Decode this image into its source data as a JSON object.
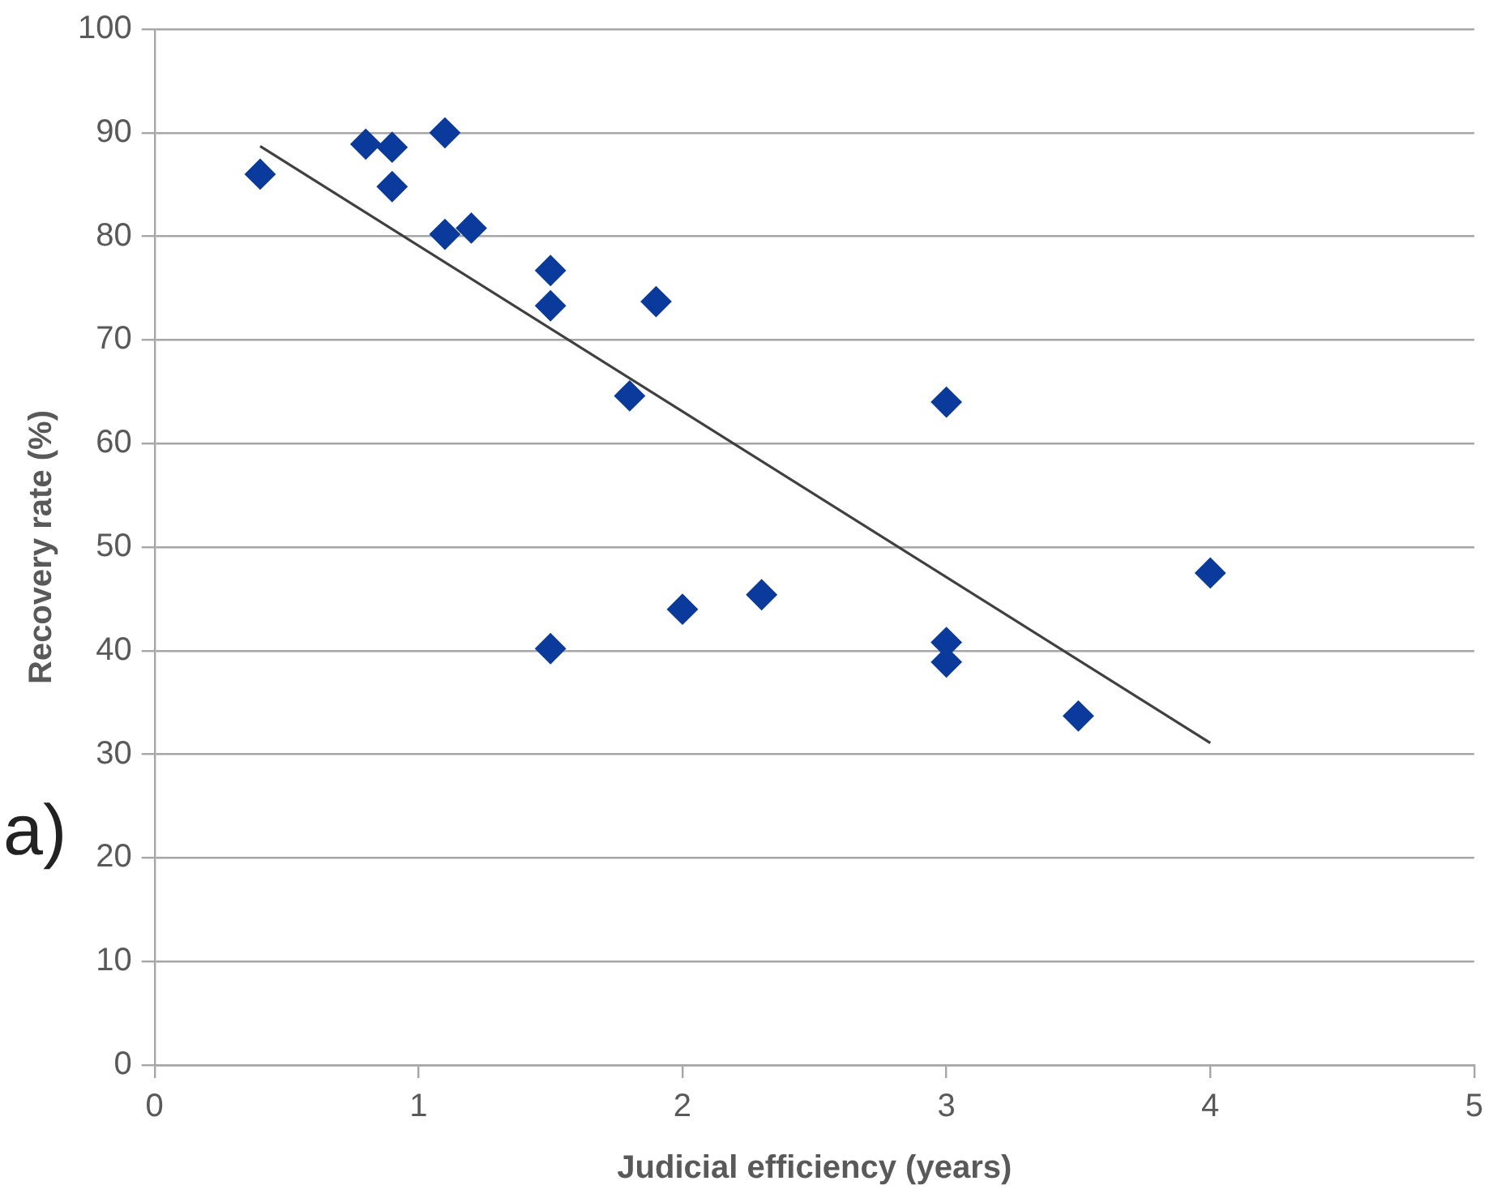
{
  "chart_data": {
    "type": "scatter",
    "xlabel": "Judicial efficiency (years)",
    "ylabel": "Recovery rate (%)",
    "xlim": [
      0,
      5
    ],
    "xticks": [
      0,
      1,
      2,
      3,
      4,
      5
    ],
    "ylim": [
      0,
      100
    ],
    "yticks": [
      0,
      10,
      20,
      30,
      40,
      50,
      60,
      70,
      80,
      90,
      100
    ],
    "grid": "y",
    "legend": false,
    "annotations": [
      "a)"
    ],
    "series": [
      {
        "marker": "diamond",
        "color": "#0a3a9c",
        "x": [
          0.4,
          0.8,
          0.9,
          0.9,
          1.1,
          1.1,
          1.2,
          1.5,
          1.5,
          1.9,
          1.8,
          3.0,
          1.5,
          2.0,
          2.3,
          3.0,
          3.0,
          3.5,
          4.0
        ],
        "values": [
          86,
          88.9,
          88.6,
          84.8,
          90,
          80.2,
          80.8,
          76.7,
          73.3,
          73.7,
          64.6,
          64,
          40.2,
          44,
          45.4,
          40.8,
          38.9,
          33.7,
          47.5
        ]
      },
      {
        "type": "line",
        "marker": "none",
        "color": "#404040",
        "x": [
          0.4,
          4.0
        ],
        "values": [
          88.7,
          31.1
        ]
      }
    ]
  }
}
